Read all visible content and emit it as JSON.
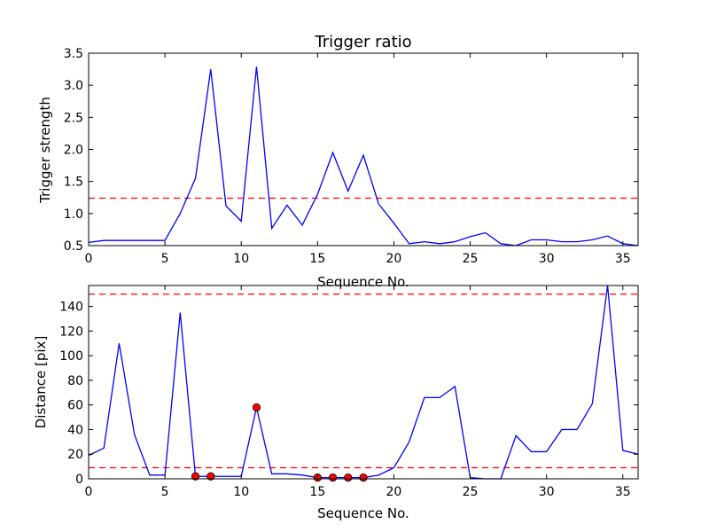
{
  "chart_data": [
    {
      "type": "line",
      "title": "Trigger ratio",
      "xlabel": "Sequence No.",
      "ylabel": "Trigger strength",
      "xlim": [
        0,
        36
      ],
      "ylim": [
        0.5,
        3.5
      ],
      "xticks": [
        0,
        5,
        10,
        15,
        20,
        25,
        30,
        35
      ],
      "yticks": [
        0.5,
        1.0,
        1.5,
        2.0,
        2.5,
        3.0,
        3.5
      ],
      "ytick_labels": [
        "0.5",
        "1.0",
        "1.5",
        "2.0",
        "2.5",
        "3.0",
        "3.5"
      ],
      "grid": false,
      "series": [
        {
          "color": "#0000ff",
          "x": [
            0,
            1,
            2,
            3,
            4,
            5,
            6,
            7,
            8,
            9,
            10,
            11,
            12,
            13,
            14,
            15,
            16,
            17,
            18,
            19,
            20,
            21,
            22,
            23,
            24,
            25,
            26,
            27,
            28,
            29,
            30,
            31,
            32,
            33,
            34,
            35,
            36
          ],
          "y": [
            0.55,
            0.58,
            0.58,
            0.58,
            0.58,
            0.58,
            1.0,
            1.55,
            3.25,
            1.12,
            0.88,
            3.29,
            0.77,
            1.13,
            0.82,
            1.3,
            1.95,
            1.35,
            1.91,
            1.15,
            0.85,
            0.53,
            0.56,
            0.53,
            0.56,
            0.64,
            0.7,
            0.53,
            0.5,
            0.59,
            0.59,
            0.56,
            0.56,
            0.59,
            0.65,
            0.53,
            0.5
          ]
        }
      ],
      "reference_lines": [
        {
          "y": 1.24,
          "color": "#ff0000",
          "style": "dashed"
        }
      ]
    },
    {
      "type": "line",
      "title": "",
      "xlabel": "Sequence No.",
      "ylabel": "Distance [pix]",
      "xlim": [
        0,
        36
      ],
      "ylim": [
        0,
        157
      ],
      "xticks": [
        0,
        5,
        10,
        15,
        20,
        25,
        30,
        35
      ],
      "yticks": [
        0,
        20,
        40,
        60,
        80,
        100,
        120,
        140
      ],
      "ytick_labels": [
        "0",
        "20",
        "40",
        "60",
        "80",
        "100",
        "120",
        "140"
      ],
      "grid": false,
      "series": [
        {
          "color": "#0000ff",
          "x": [
            0,
            1,
            2,
            3,
            4,
            5,
            6,
            7,
            8,
            9,
            10,
            11,
            12,
            13,
            14,
            15,
            16,
            17,
            18,
            19,
            20,
            21,
            22,
            23,
            24,
            25,
            26,
            27,
            28,
            29,
            30,
            31,
            32,
            33,
            34,
            35,
            36
          ],
          "y": [
            19,
            25,
            110,
            36,
            3,
            3,
            135,
            2,
            2,
            2,
            2,
            58,
            4,
            4,
            3,
            1,
            1,
            1,
            1,
            3,
            9,
            30,
            66,
            66,
            75,
            1,
            0,
            0,
            35,
            22,
            22,
            40,
            40,
            61,
            157,
            23,
            20
          ]
        }
      ],
      "highlight_points": {
        "color": "#ff0000",
        "x": [
          7,
          8,
          11,
          15,
          16,
          17,
          18
        ],
        "y": [
          2,
          2,
          58,
          1,
          1,
          1,
          1
        ]
      },
      "reference_lines": [
        {
          "y": 150,
          "color": "#ff0000",
          "style": "dashed"
        },
        {
          "y": 9,
          "color": "#ff0000",
          "style": "dashed"
        }
      ]
    }
  ]
}
